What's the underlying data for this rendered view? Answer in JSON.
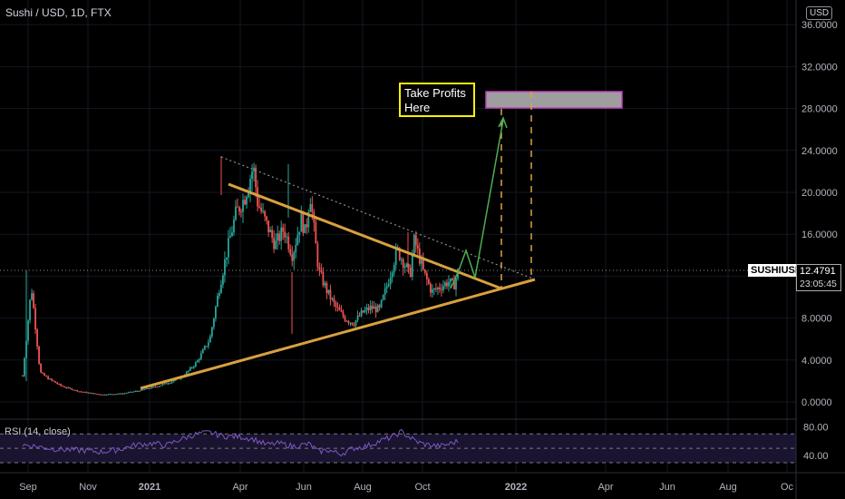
{
  "header": {
    "title": "Sushi / USD, 1D, FTX",
    "currency": "USD"
  },
  "price_tag": {
    "symbol": "SUSHIUSD",
    "price": "12.4791",
    "countdown": "23:05:45"
  },
  "annotation": {
    "text_line1": "Take Profits",
    "text_line2": "Here"
  },
  "rsi": {
    "label": "RSI (14, close)"
  },
  "colors": {
    "background": "#000000",
    "up_candle": "#26a69a",
    "down_candle": "#ef5350",
    "trendline": "#d9a040",
    "projection_arrow": "#4caf50",
    "target_box": "#9e9e9e",
    "target_box_border": "#c040c0",
    "rsi_line": "#7e57c2",
    "annotation_border": "#fff200"
  },
  "chart_data": {
    "type": "candlestick",
    "title": "Sushi / USD, 1D, FTX",
    "x_ticks": [
      "Sep",
      "Nov",
      "2021",
      "Apr",
      "Jun",
      "Aug",
      "Oct",
      "2022",
      "Apr",
      "Jun",
      "Aug",
      "Oc"
    ],
    "y_ticks": [
      "0.0000",
      "4.0000",
      "8.0000",
      "12.0000",
      "16.0000",
      "20.0000",
      "24.0000",
      "28.0000",
      "32.0000",
      "36.0000"
    ],
    "ylim": [
      0,
      36.5
    ],
    "close_path": [
      [
        0,
        2.5
      ],
      [
        2,
        11.0
      ],
      [
        4,
        2.8
      ],
      [
        6,
        2.2
      ],
      [
        9,
        1.5
      ],
      [
        13,
        1.0
      ],
      [
        18,
        0.7
      ],
      [
        23,
        0.8
      ],
      [
        27,
        1.1
      ],
      [
        31,
        1.5
      ],
      [
        34,
        1.9
      ],
      [
        37,
        2.5
      ],
      [
        40,
        3.8
      ],
      [
        43,
        6.0
      ],
      [
        45,
        10.5
      ],
      [
        47,
        14.5
      ],
      [
        49,
        18.0
      ],
      [
        51,
        19.5
      ],
      [
        53,
        22.5
      ],
      [
        54,
        19.0
      ],
      [
        56,
        17.0
      ],
      [
        58,
        15.0
      ],
      [
        60,
        16.5
      ],
      [
        62,
        14.0
      ],
      [
        64,
        17.5
      ],
      [
        65,
        16.0
      ],
      [
        66,
        20.0
      ],
      [
        68,
        12.5
      ],
      [
        70,
        10.5
      ],
      [
        72,
        9.0
      ],
      [
        74,
        8.0
      ],
      [
        76,
        7.5
      ],
      [
        78,
        8.5
      ],
      [
        80,
        9.0
      ],
      [
        82,
        8.8
      ],
      [
        84,
        11.5
      ],
      [
        86,
        14.5
      ],
      [
        88,
        13.0
      ],
      [
        89,
        12.0
      ],
      [
        90,
        15.5
      ],
      [
        92,
        12.5
      ],
      [
        94,
        10.5
      ],
      [
        96,
        11.0
      ],
      [
        98,
        11.5
      ],
      [
        99,
        11.0
      ],
      [
        100,
        12.4
      ]
    ],
    "rsi_ylim": [
      20,
      88
    ],
    "rsi_ticks": [
      "80.00",
      "40.00"
    ],
    "rsi_path": [
      [
        0,
        55
      ],
      [
        3,
        53
      ],
      [
        6,
        50
      ],
      [
        10,
        48
      ],
      [
        14,
        47
      ],
      [
        18,
        45
      ],
      [
        22,
        48
      ],
      [
        26,
        55
      ],
      [
        30,
        57
      ],
      [
        33,
        54
      ],
      [
        36,
        62
      ],
      [
        40,
        70
      ],
      [
        43,
        72
      ],
      [
        46,
        67
      ],
      [
        50,
        66
      ],
      [
        53,
        63
      ],
      [
        56,
        55
      ],
      [
        59,
        57
      ],
      [
        62,
        53
      ],
      [
        66,
        56
      ],
      [
        68,
        45
      ],
      [
        70,
        48
      ],
      [
        73,
        42
      ],
      [
        76,
        50
      ],
      [
        79,
        53
      ],
      [
        82,
        60
      ],
      [
        85,
        66
      ],
      [
        87,
        73
      ],
      [
        89,
        65
      ],
      [
        91,
        58
      ],
      [
        93,
        55
      ],
      [
        96,
        53
      ],
      [
        98,
        56
      ],
      [
        100,
        60
      ]
    ]
  }
}
